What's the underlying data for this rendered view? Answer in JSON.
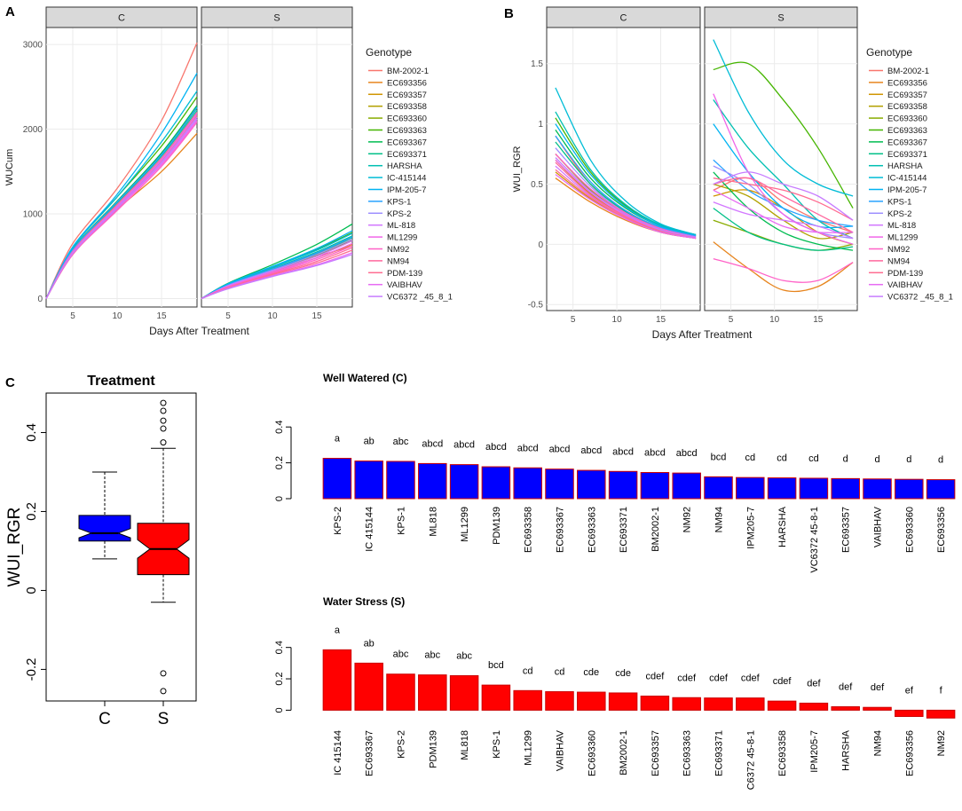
{
  "panel_labels": {
    "a": "A",
    "b": "B",
    "c": "C"
  },
  "genotype_legend_title": "Genotype",
  "colors": {
    "panel_bg": "#ffffff",
    "grid": "#ebebeb",
    "strip": "#d9d9d9",
    "blue_bar": "#0000ff",
    "red_bar": "#ff0000",
    "bar_edge": "#cc0000"
  },
  "chart_data": [
    {
      "id": "A",
      "type": "line",
      "facets": [
        "C",
        "S"
      ],
      "xlabel": "Days After Treatment",
      "ylabel": "WUCum",
      "xlim": [
        2,
        19
      ],
      "ylim": [
        -100,
        3200
      ],
      "xticks": [
        5,
        10,
        15
      ],
      "yticks": [
        0,
        1000,
        2000,
        3000
      ],
      "legend_title": "Genotype",
      "legend_position": "right",
      "x": [
        2,
        5,
        10,
        15,
        19
      ],
      "series": [
        {
          "name": "BM-2002-1",
          "color": "#F8766D",
          "C": [
            0,
            650,
            1300,
            2100,
            3020
          ],
          "S": [
            0,
            170,
            360,
            500,
            620
          ]
        },
        {
          "name": "EC693356",
          "color": "#E7851E",
          "C": [
            0,
            520,
            1050,
            1500,
            1950
          ],
          "S": [
            0,
            150,
            320,
            480,
            640
          ]
        },
        {
          "name": "EC693357",
          "color": "#D09400",
          "C": [
            0,
            580,
            1150,
            1700,
            2250
          ],
          "S": [
            0,
            160,
            350,
            530,
            720
          ]
        },
        {
          "name": "EC693358",
          "color": "#B2A100",
          "C": [
            0,
            560,
            1100,
            1650,
            2180
          ],
          "S": [
            0,
            155,
            340,
            520,
            700
          ]
        },
        {
          "name": "EC693360",
          "color": "#89AC00",
          "C": [
            0,
            550,
            1080,
            1620,
            2150
          ],
          "S": [
            0,
            150,
            330,
            510,
            690
          ]
        },
        {
          "name": "EC693363",
          "color": "#45B500",
          "C": [
            0,
            600,
            1200,
            1800,
            2380
          ],
          "S": [
            0,
            170,
            370,
            580,
            780
          ]
        },
        {
          "name": "EC693367",
          "color": "#00BC51",
          "C": [
            0,
            580,
            1150,
            1720,
            2280
          ],
          "S": [
            0,
            180,
            400,
            640,
            880
          ]
        },
        {
          "name": "EC693371",
          "color": "#00C087",
          "C": [
            0,
            570,
            1130,
            1700,
            2250
          ],
          "S": [
            0,
            165,
            355,
            550,
            740
          ]
        },
        {
          "name": "HARSHA",
          "color": "#00C0B2",
          "C": [
            0,
            560,
            1120,
            1680,
            2220
          ],
          "S": [
            0,
            160,
            345,
            535,
            720
          ]
        },
        {
          "name": "IC-415144",
          "color": "#00BCD6",
          "C": [
            0,
            600,
            1200,
            1850,
            2450
          ],
          "S": [
            0,
            170,
            370,
            570,
            770
          ]
        },
        {
          "name": "IPM-205-7",
          "color": "#00B3F2",
          "C": [
            0,
            610,
            1230,
            1950,
            2660
          ],
          "S": [
            0,
            175,
            380,
            590,
            800
          ]
        },
        {
          "name": "KPS-1",
          "color": "#29A3FF",
          "C": [
            0,
            575,
            1140,
            1700,
            2260
          ],
          "S": [
            0,
            160,
            350,
            540,
            730
          ]
        },
        {
          "name": "KPS-2",
          "color": "#9C8DFF",
          "C": [
            0,
            560,
            1100,
            1650,
            2200
          ],
          "S": [
            0,
            155,
            335,
            520,
            700
          ]
        },
        {
          "name": "ML-818",
          "color": "#D277FF",
          "C": [
            0,
            540,
            1070,
            1600,
            2120
          ],
          "S": [
            0,
            150,
            325,
            500,
            680
          ]
        },
        {
          "name": "ML1299",
          "color": "#F166E8",
          "C": [
            0,
            530,
            1060,
            1580,
            2100
          ],
          "S": [
            0,
            140,
            310,
            480,
            650
          ]
        },
        {
          "name": "NM92",
          "color": "#FF61C7",
          "C": [
            0,
            520,
            1040,
            1560,
            2080
          ],
          "S": [
            0,
            135,
            300,
            460,
            620
          ]
        },
        {
          "name": "NM94",
          "color": "#FF689E",
          "C": [
            0,
            540,
            1080,
            1620,
            2160
          ],
          "S": [
            0,
            130,
            290,
            440,
            600
          ]
        },
        {
          "name": "PDM-139",
          "color": "#FF6C91",
          "C": [
            0,
            555,
            1110,
            1660,
            2200
          ],
          "S": [
            0,
            125,
            280,
            420,
            570
          ]
        },
        {
          "name": "VAIBHAV",
          "color": "#E76BF3",
          "C": [
            0,
            545,
            1090,
            1640,
            2180
          ],
          "S": [
            0,
            120,
            270,
            400,
            540
          ]
        },
        {
          "name": "VC6372 _45_8_1",
          "color": "#C77CFF",
          "C": [
            0,
            535,
            1070,
            1610,
            2140
          ],
          "S": [
            0,
            115,
            260,
            390,
            520
          ]
        }
      ]
    },
    {
      "id": "B",
      "type": "line",
      "facets": [
        "C",
        "S"
      ],
      "xlabel": "Days After Treatment",
      "ylabel": "WUI_RGR",
      "xlim": [
        2,
        19.5
      ],
      "ylim": [
        -0.55,
        1.8
      ],
      "xticks": [
        5,
        10,
        15
      ],
      "yticks": [
        -0.5,
        0.0,
        0.5,
        1.0,
        1.5
      ],
      "legend_title": "Genotype",
      "legend_position": "right",
      "x": [
        3,
        7,
        11,
        15,
        19
      ],
      "series": [
        {
          "name": "BM-2002-1",
          "color": "#F8766D",
          "C": [
            0.9,
            0.5,
            0.28,
            0.14,
            0.08
          ],
          "S": [
            0.45,
            0.55,
            0.35,
            0.2,
            0.1
          ]
        },
        {
          "name": "EC693356",
          "color": "#E7851E",
          "C": [
            0.55,
            0.35,
            0.2,
            0.1,
            0.05
          ],
          "S": [
            0.02,
            -0.2,
            -0.38,
            -0.35,
            -0.15
          ]
        },
        {
          "name": "EC693357",
          "color": "#D09400",
          "C": [
            0.6,
            0.38,
            0.22,
            0.1,
            0.05
          ],
          "S": [
            0.4,
            0.45,
            0.3,
            0.1,
            0.0
          ]
        },
        {
          "name": "EC693358",
          "color": "#B2A100",
          "C": [
            0.7,
            0.42,
            0.24,
            0.12,
            0.06
          ],
          "S": [
            0.5,
            0.4,
            0.2,
            0.05,
            0.1
          ]
        },
        {
          "name": "EC693360",
          "color": "#89AC00",
          "C": [
            0.75,
            0.45,
            0.25,
            0.12,
            0.06
          ],
          "S": [
            0.2,
            0.1,
            0.0,
            -0.05,
            0.0
          ]
        },
        {
          "name": "EC693363",
          "color": "#45B500",
          "C": [
            1.05,
            0.6,
            0.32,
            0.16,
            0.08
          ],
          "S": [
            1.45,
            1.5,
            1.2,
            0.8,
            0.3
          ]
        },
        {
          "name": "EC693367",
          "color": "#00BC51",
          "C": [
            0.95,
            0.55,
            0.3,
            0.15,
            0.07
          ],
          "S": [
            0.6,
            0.3,
            0.1,
            0.0,
            -0.05
          ]
        },
        {
          "name": "EC693371",
          "color": "#00C087",
          "C": [
            0.85,
            0.5,
            0.27,
            0.13,
            0.06
          ],
          "S": [
            0.3,
            0.1,
            0.0,
            -0.05,
            -0.02
          ]
        },
        {
          "name": "HARSHA",
          "color": "#00C0B2",
          "C": [
            1.1,
            0.62,
            0.33,
            0.16,
            0.08
          ],
          "S": [
            1.2,
            0.8,
            0.5,
            0.2,
            0.05
          ]
        },
        {
          "name": "IC-415144",
          "color": "#00BCD6",
          "C": [
            1.3,
            0.7,
            0.36,
            0.17,
            0.08
          ],
          "S": [
            1.7,
            1.1,
            0.7,
            0.5,
            0.4
          ]
        },
        {
          "name": "IPM-205-7",
          "color": "#00B3F2",
          "C": [
            1.0,
            0.58,
            0.31,
            0.15,
            0.07
          ],
          "S": [
            1.0,
            0.6,
            0.3,
            0.15,
            0.15
          ]
        },
        {
          "name": "KPS-1",
          "color": "#29A3FF",
          "C": [
            0.9,
            0.52,
            0.28,
            0.14,
            0.07
          ],
          "S": [
            0.7,
            0.45,
            0.3,
            0.2,
            0.15
          ]
        },
        {
          "name": "KPS-2",
          "color": "#9C8DFF",
          "C": [
            0.8,
            0.48,
            0.26,
            0.13,
            0.06
          ],
          "S": [
            0.65,
            0.5,
            0.25,
            0.1,
            0.05
          ]
        },
        {
          "name": "ML-818",
          "color": "#D277FF",
          "C": [
            0.65,
            0.4,
            0.23,
            0.11,
            0.05
          ],
          "S": [
            0.35,
            0.25,
            0.2,
            0.15,
            0.05
          ]
        },
        {
          "name": "ML1299",
          "color": "#F166E8",
          "C": [
            0.7,
            0.43,
            0.24,
            0.12,
            0.06
          ],
          "S": [
            1.25,
            0.6,
            0.25,
            0.1,
            0.0
          ]
        },
        {
          "name": "NM92",
          "color": "#FF61C7",
          "C": [
            0.75,
            0.46,
            0.26,
            0.13,
            0.06
          ],
          "S": [
            -0.12,
            -0.2,
            -0.3,
            -0.3,
            -0.15
          ]
        },
        {
          "name": "NM94",
          "color": "#FF689E",
          "C": [
            0.68,
            0.41,
            0.23,
            0.11,
            0.05
          ],
          "S": [
            0.5,
            0.55,
            0.4,
            0.25,
            0.1
          ]
        },
        {
          "name": "PDM-139",
          "color": "#FF6C91",
          "C": [
            0.62,
            0.39,
            0.22,
            0.11,
            0.05
          ],
          "S": [
            0.55,
            0.5,
            0.45,
            0.35,
            0.2
          ]
        },
        {
          "name": "VAIBHAV",
          "color": "#E76BF3",
          "C": [
            0.58,
            0.37,
            0.21,
            0.1,
            0.05
          ],
          "S": [
            0.45,
            0.3,
            0.15,
            0.1,
            0.1
          ]
        },
        {
          "name": "VC6372 _45_8_1",
          "color": "#C77CFF",
          "C": [
            0.72,
            0.44,
            0.25,
            0.12,
            0.06
          ],
          "S": [
            0.5,
            0.6,
            0.5,
            0.4,
            0.2
          ]
        }
      ]
    },
    {
      "id": "C-box",
      "type": "box",
      "title": "Treatment",
      "ylabel": "WUI_RGR",
      "ylim": [
        -0.28,
        0.5
      ],
      "yticks": [
        -0.2,
        0.0,
        0.2,
        0.4
      ],
      "categories": [
        "C",
        "S"
      ],
      "boxes": [
        {
          "name": "C",
          "color": "#0000ff",
          "whisker_low": 0.08,
          "q1": 0.125,
          "median": 0.145,
          "q3": 0.19,
          "whisker_high": 0.3,
          "outliers": []
        },
        {
          "name": "S",
          "color": "#ff0000",
          "whisker_low": -0.03,
          "q1": 0.04,
          "median": 0.105,
          "q3": 0.17,
          "whisker_high": 0.36,
          "outliers": [
            0.475,
            0.455,
            0.43,
            0.41,
            0.375,
            -0.21,
            -0.255
          ]
        }
      ]
    },
    {
      "id": "C-well",
      "type": "bar",
      "title": "Well Watered (C)",
      "ylim": [
        0,
        0.5
      ],
      "yticks": [
        0.0,
        0.2,
        0.4
      ],
      "color": "#0000ff",
      "categories": [
        "KPS-2",
        "IC 415144",
        "KPS-1",
        "ML818",
        "ML1299",
        "PDM139",
        "EC693358",
        "EC693367",
        "EC693363",
        "EC693371",
        "BM2002-1",
        "NM92",
        "NM94",
        "IPM205-7",
        "HARSHA",
        "VC6372 45-8-1",
        "EC693357",
        "VAIBHAV",
        "EC693360",
        "EC693356"
      ],
      "values": [
        0.225,
        0.21,
        0.208,
        0.196,
        0.19,
        0.178,
        0.172,
        0.165,
        0.158,
        0.152,
        0.146,
        0.143,
        0.122,
        0.118,
        0.116,
        0.114,
        0.112,
        0.11,
        0.108,
        0.106
      ],
      "letters": [
        "a",
        "ab",
        "abc",
        "abcd",
        "abcd",
        "abcd",
        "abcd",
        "abcd",
        "abcd",
        "abcd",
        "abcd",
        "abcd",
        "bcd",
        "cd",
        "cd",
        "cd",
        "d",
        "d",
        "d",
        "d"
      ]
    },
    {
      "id": "C-stress",
      "type": "bar",
      "title": "Water Stress (S)",
      "ylim": [
        -0.06,
        0.5
      ],
      "yticks": [
        0.0,
        0.2,
        0.4
      ],
      "color": "#ff0000",
      "categories": [
        "IC 415144",
        "EC693367",
        "KPS-2",
        "PDM139",
        "ML818",
        "KPS-1",
        "ML1299",
        "VAIBHAV",
        "EC693360",
        "BM2002-1",
        "EC693357",
        "EC693363",
        "EC693371",
        "C6372 45-8-1",
        "EC693358",
        "IPM205-7",
        "HARSHA",
        "NM94",
        "EC693356",
        "NM92"
      ],
      "values": [
        0.385,
        0.3,
        0.23,
        0.225,
        0.22,
        0.16,
        0.125,
        0.118,
        0.115,
        0.11,
        0.09,
        0.08,
        0.078,
        0.078,
        0.058,
        0.045,
        0.022,
        0.018,
        -0.04,
        -0.05
      ],
      "letters": [
        "a",
        "ab",
        "abc",
        "abc",
        "abc",
        "bcd",
        "cd",
        "cd",
        "cde",
        "cde",
        "cdef",
        "cdef",
        "cdef",
        "cdef",
        "cdef",
        "def",
        "def",
        "def",
        "ef",
        "f"
      ]
    }
  ]
}
